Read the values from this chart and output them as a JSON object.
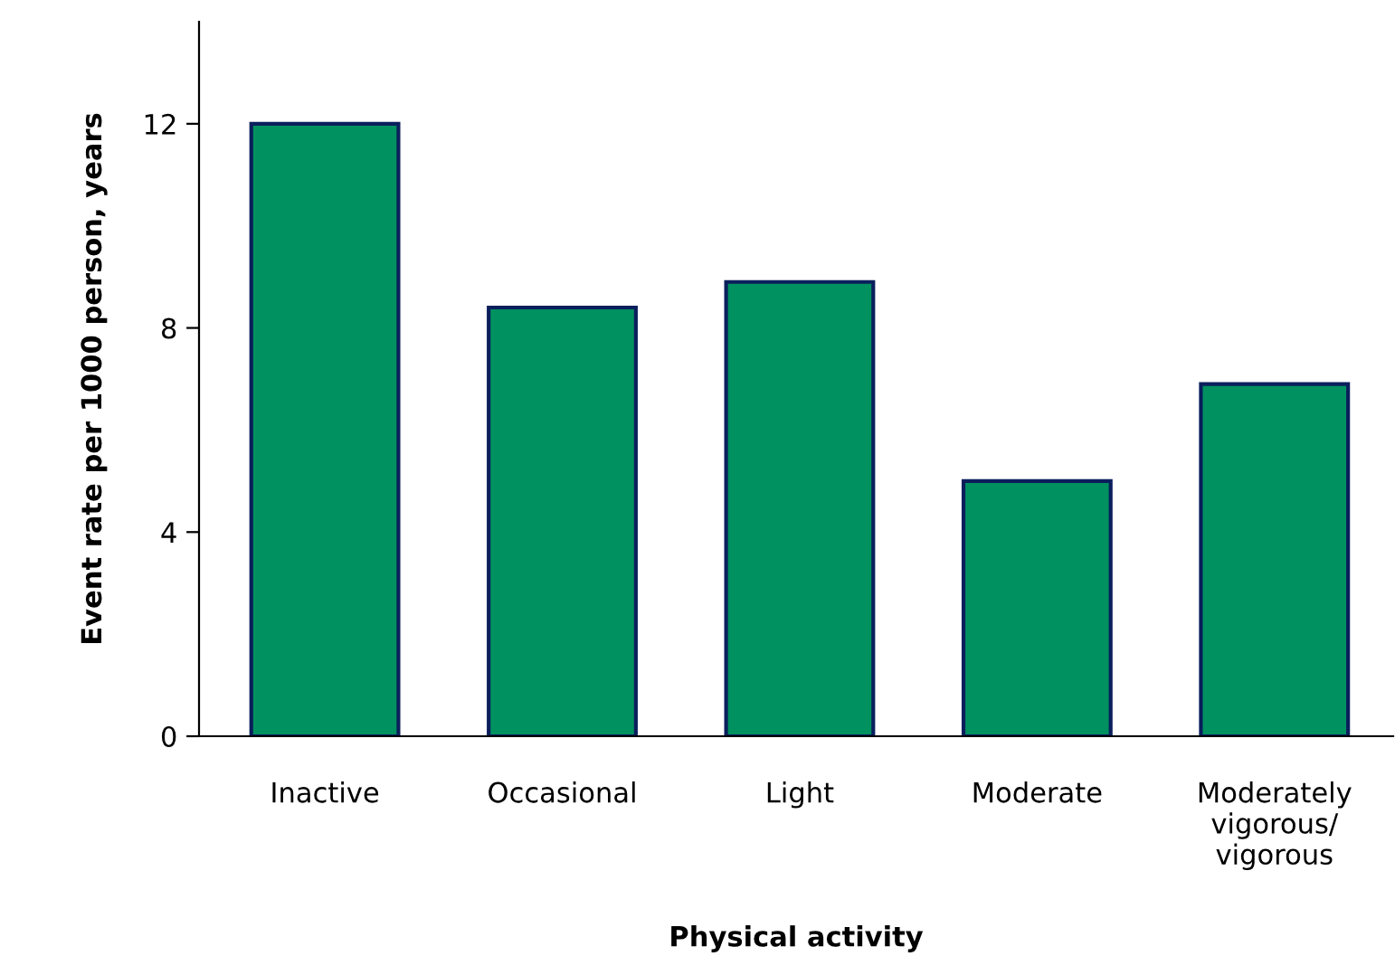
{
  "chart_data": {
    "type": "bar",
    "xlabel": "Physical activity",
    "ylabel": "Event rate per 1000 person, years",
    "categories": [
      "Inactive",
      "Occasional",
      "Light",
      "Moderate",
      "Moderately\nvigorous/\nvigorous"
    ],
    "values": [
      12.0,
      8.4,
      8.9,
      5.0,
      6.9
    ],
    "color": "#009160",
    "ylim": [
      0,
      14
    ],
    "yticks": [
      0,
      4,
      8,
      12
    ],
    "grid": false,
    "legend": false
  }
}
